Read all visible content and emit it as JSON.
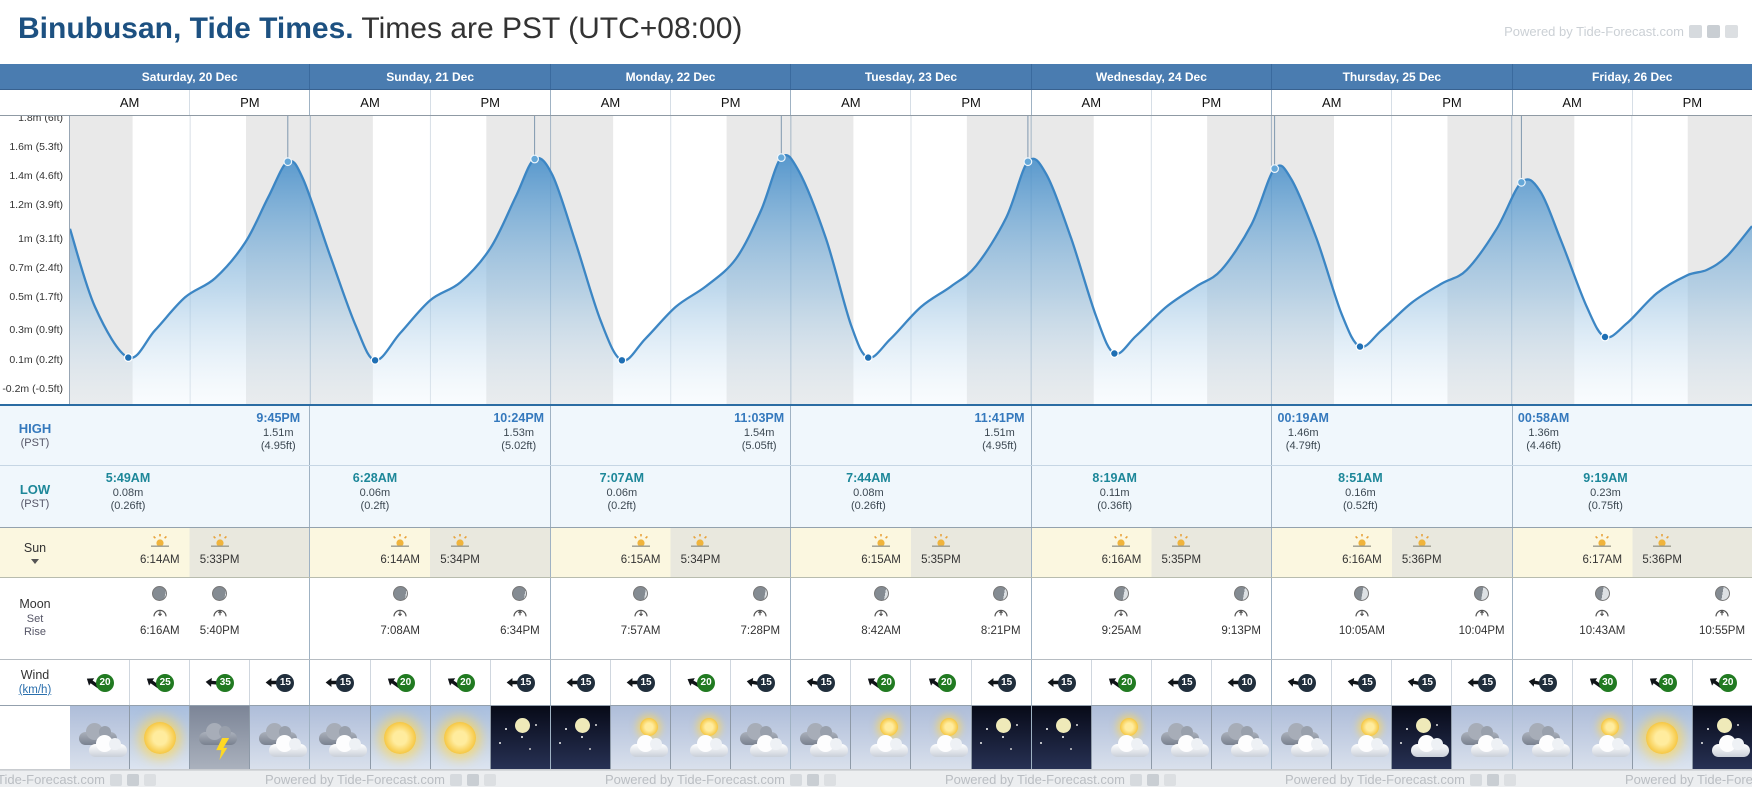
{
  "header": {
    "title_location": "Binubusan, Tide Times.",
    "title_suffix": "Times are PST (UTC+08:00)",
    "powered_by": "Powered by Tide-Forecast.com"
  },
  "labels": {
    "am": "AM",
    "pm": "PM",
    "high": "HIGH",
    "high_tz": "(PST)",
    "low": "LOW",
    "low_tz": "(PST)",
    "sun": "Sun",
    "moon": "Moon",
    "set": "Set",
    "rise": "Rise",
    "wind": "Wind",
    "wind_unit": "(km/h)"
  },
  "y_axis": [
    {
      "label": "1.8m (6ft)",
      "ft": 6.0
    },
    {
      "label": "1.6m (5.3ft)",
      "ft": 5.3
    },
    {
      "label": "1.4m (4.6ft)",
      "ft": 4.6
    },
    {
      "label": "1.2m (3.9ft)",
      "ft": 3.9
    },
    {
      "label": "1m (3.1ft)",
      "ft": 3.1
    },
    {
      "label": "0.7m (2.4ft)",
      "ft": 2.4
    },
    {
      "label": "0.5m (1.7ft)",
      "ft": 1.7
    },
    {
      "label": "0.3m (0.9ft)",
      "ft": 0.9
    },
    {
      "label": "0.1m (0.2ft)",
      "ft": 0.2
    },
    {
      "label": "-0.2m (-0.5ft)",
      "ft": -0.5
    }
  ],
  "days": [
    {
      "label": "Saturday, 20 Dec",
      "high": {
        "time": "9:45PM",
        "m": "1.51m",
        "ft": "(4.95ft)"
      },
      "low": {
        "time": "5:49AM",
        "m": "0.08m",
        "ft": "(0.26ft)"
      },
      "sunrise": "6:14AM",
      "sunset": "5:33PM",
      "moon_set": "6:16AM",
      "moon_rise": "5:40PM",
      "moon_dark_pct": 88,
      "wind": [
        {
          "s": 20,
          "r": 35
        },
        {
          "s": 25,
          "r": 35
        },
        {
          "s": 35,
          "r": 5
        },
        {
          "s": 15,
          "r": 0
        }
      ],
      "weather": [
        "cloudy",
        "sunny",
        "storm",
        "cloudy"
      ]
    },
    {
      "label": "Sunday, 21 Dec",
      "high": {
        "time": "10:24PM",
        "m": "1.53m",
        "ft": "(5.02ft)"
      },
      "low": {
        "time": "6:28AM",
        "m": "0.06m",
        "ft": "(0.2ft)"
      },
      "sunrise": "6:14AM",
      "sunset": "5:34PM",
      "moon_set": "7:08AM",
      "moon_rise": "6:34PM",
      "moon_dark_pct": 85,
      "wind": [
        {
          "s": 15,
          "r": 0
        },
        {
          "s": 20,
          "r": 35
        },
        {
          "s": 20,
          "r": 35
        },
        {
          "s": 15,
          "r": 0
        }
      ],
      "weather": [
        "cloudy",
        "sunny",
        "sunny",
        "night-clear"
      ]
    },
    {
      "label": "Monday, 22 Dec",
      "high": {
        "time": "11:03PM",
        "m": "1.54m",
        "ft": "(5.05ft)"
      },
      "low": {
        "time": "7:07AM",
        "m": "0.06m",
        "ft": "(0.2ft)"
      },
      "sunrise": "6:15AM",
      "sunset": "5:34PM",
      "moon_set": "7:57AM",
      "moon_rise": "7:28PM",
      "moon_dark_pct": 80,
      "wind": [
        {
          "s": 15,
          "r": 0
        },
        {
          "s": 15,
          "r": 0
        },
        {
          "s": 20,
          "r": 30
        },
        {
          "s": 15,
          "r": 10
        }
      ],
      "weather": [
        "night-clear",
        "partly",
        "partly",
        "cloudy"
      ]
    },
    {
      "label": "Tuesday, 23 Dec",
      "high": {
        "time": "11:41PM",
        "m": "1.51m",
        "ft": "(4.95ft)"
      },
      "low": {
        "time": "7:44AM",
        "m": "0.08m",
        "ft": "(0.26ft)"
      },
      "sunrise": "6:15AM",
      "sunset": "5:35PM",
      "moon_set": "8:42AM",
      "moon_rise": "8:21PM",
      "moon_dark_pct": 74,
      "wind": [
        {
          "s": 15,
          "r": 10
        },
        {
          "s": 20,
          "r": 35
        },
        {
          "s": 20,
          "r": 35
        },
        {
          "s": 15,
          "r": 0
        }
      ],
      "weather": [
        "cloudy",
        "partly",
        "partly",
        "night-clear"
      ]
    },
    {
      "label": "Wednesday, 24 Dec",
      "high": null,
      "low": {
        "time": "8:19AM",
        "m": "0.11m",
        "ft": "(0.36ft)"
      },
      "sunrise": "6:16AM",
      "sunset": "5:35PM",
      "moon_set": "9:25AM",
      "moon_rise": "9:13PM",
      "moon_dark_pct": 66,
      "wind": [
        {
          "s": 15,
          "r": 0
        },
        {
          "s": 20,
          "r": 35
        },
        {
          "s": 15,
          "r": 0
        },
        {
          "s": 10,
          "r": 0
        }
      ],
      "weather": [
        "night-clear",
        "partly",
        "cloudy",
        "cloudy"
      ]
    },
    {
      "label": "Thursday, 25 Dec",
      "high": {
        "time": "00:19AM",
        "m": "1.46m",
        "ft": "(4.79ft)"
      },
      "low": {
        "time": "8:51AM",
        "m": "0.16m",
        "ft": "(0.52ft)"
      },
      "sunrise": "6:16AM",
      "sunset": "5:36PM",
      "moon_set": "10:05AM",
      "moon_rise": "10:04PM",
      "moon_dark_pct": 55,
      "wind": [
        {
          "s": 10,
          "r": 10
        },
        {
          "s": 15,
          "r": 10
        },
        {
          "s": 15,
          "r": 10
        },
        {
          "s": 15,
          "r": 0
        }
      ],
      "weather": [
        "cloudy",
        "partly",
        "night-partly",
        "cloudy"
      ]
    },
    {
      "label": "Friday, 26 Dec",
      "high": {
        "time": "00:58AM",
        "m": "1.36m",
        "ft": "(4.46ft)"
      },
      "low": {
        "time": "9:19AM",
        "m": "0.23m",
        "ft": "(0.75ft)"
      },
      "sunrise": "6:17AM",
      "sunset": "5:36PM",
      "moon_set": "10:43AM",
      "moon_rise": "10:55PM",
      "moon_dark_pct": 50,
      "wind": [
        {
          "s": 15,
          "r": 10
        },
        {
          "s": 30,
          "r": 35
        },
        {
          "s": 30,
          "r": 35
        },
        {
          "s": 20,
          "r": 35
        }
      ],
      "weather": [
        "cloudy",
        "partly",
        "sunny",
        "night-partly"
      ]
    }
  ],
  "chart_data": {
    "type": "area",
    "title": "",
    "x_unit": "hours from Saturday 00:00 (PST)",
    "y_unit": "m",
    "ylim_ft": [
      -0.85,
      6.05
    ],
    "y_ticks_ft": [
      6.0,
      5.3,
      4.6,
      3.9,
      3.1,
      2.4,
      1.7,
      0.9,
      0.2,
      -0.5
    ],
    "night_bands_h": [
      [
        0,
        6.25
      ],
      [
        17.58,
        24
      ]
    ],
    "points": [
      [
        0,
        1.02
      ],
      [
        2.5,
        0.45
      ],
      [
        5.82,
        0.08
      ],
      [
        8.5,
        0.28
      ],
      [
        11.5,
        0.52
      ],
      [
        14.5,
        0.66
      ],
      [
        17.5,
        0.92
      ],
      [
        19.8,
        1.25
      ],
      [
        21.75,
        1.51
      ],
      [
        23.3,
        1.38
      ],
      [
        26,
        0.82
      ],
      [
        28.5,
        0.32
      ],
      [
        30.47,
        0.06
      ],
      [
        33,
        0.26
      ],
      [
        36,
        0.5
      ],
      [
        39,
        0.63
      ],
      [
        42,
        0.88
      ],
      [
        44.5,
        1.25
      ],
      [
        46.4,
        1.53
      ],
      [
        48.2,
        1.41
      ],
      [
        50.5,
        0.92
      ],
      [
        53,
        0.35
      ],
      [
        55.12,
        0.06
      ],
      [
        57.5,
        0.22
      ],
      [
        60.5,
        0.45
      ],
      [
        63.5,
        0.6
      ],
      [
        66.5,
        0.8
      ],
      [
        69,
        1.15
      ],
      [
        71.05,
        1.54
      ],
      [
        72.8,
        1.44
      ],
      [
        75.5,
        0.95
      ],
      [
        78,
        0.32
      ],
      [
        79.73,
        0.08
      ],
      [
        82,
        0.22
      ],
      [
        85,
        0.45
      ],
      [
        88,
        0.6
      ],
      [
        90.5,
        0.75
      ],
      [
        93.5,
        1.1
      ],
      [
        95.68,
        1.51
      ],
      [
        97.5,
        1.42
      ],
      [
        100,
        0.95
      ],
      [
        102.5,
        0.38
      ],
      [
        104.32,
        0.11
      ],
      [
        106.5,
        0.24
      ],
      [
        109.5,
        0.45
      ],
      [
        112.5,
        0.6
      ],
      [
        115,
        0.72
      ],
      [
        118,
        1.05
      ],
      [
        120.32,
        1.46
      ],
      [
        122,
        1.38
      ],
      [
        124.5,
        0.95
      ],
      [
        127,
        0.4
      ],
      [
        128.85,
        0.16
      ],
      [
        131,
        0.28
      ],
      [
        134,
        0.48
      ],
      [
        137,
        0.62
      ],
      [
        139.5,
        0.72
      ],
      [
        142.5,
        1.02
      ],
      [
        144.97,
        1.36
      ],
      [
        146.8,
        1.3
      ],
      [
        149,
        0.92
      ],
      [
        151.5,
        0.45
      ],
      [
        153.32,
        0.23
      ],
      [
        155.5,
        0.33
      ],
      [
        158.5,
        0.55
      ],
      [
        161.5,
        0.68
      ],
      [
        163.5,
        0.72
      ],
      [
        165.5,
        0.82
      ],
      [
        168,
        1.04
      ]
    ],
    "lows": [
      [
        5.82,
        0.08
      ],
      [
        30.47,
        0.06
      ],
      [
        55.12,
        0.06
      ],
      [
        79.73,
        0.08
      ],
      [
        104.32,
        0.11
      ],
      [
        128.85,
        0.16
      ],
      [
        153.32,
        0.23
      ]
    ],
    "highs": [
      [
        21.75,
        1.51
      ],
      [
        46.4,
        1.53
      ],
      [
        71.05,
        1.54
      ],
      [
        95.68,
        1.51
      ],
      [
        120.32,
        1.46
      ],
      [
        144.97,
        1.36
      ]
    ]
  }
}
